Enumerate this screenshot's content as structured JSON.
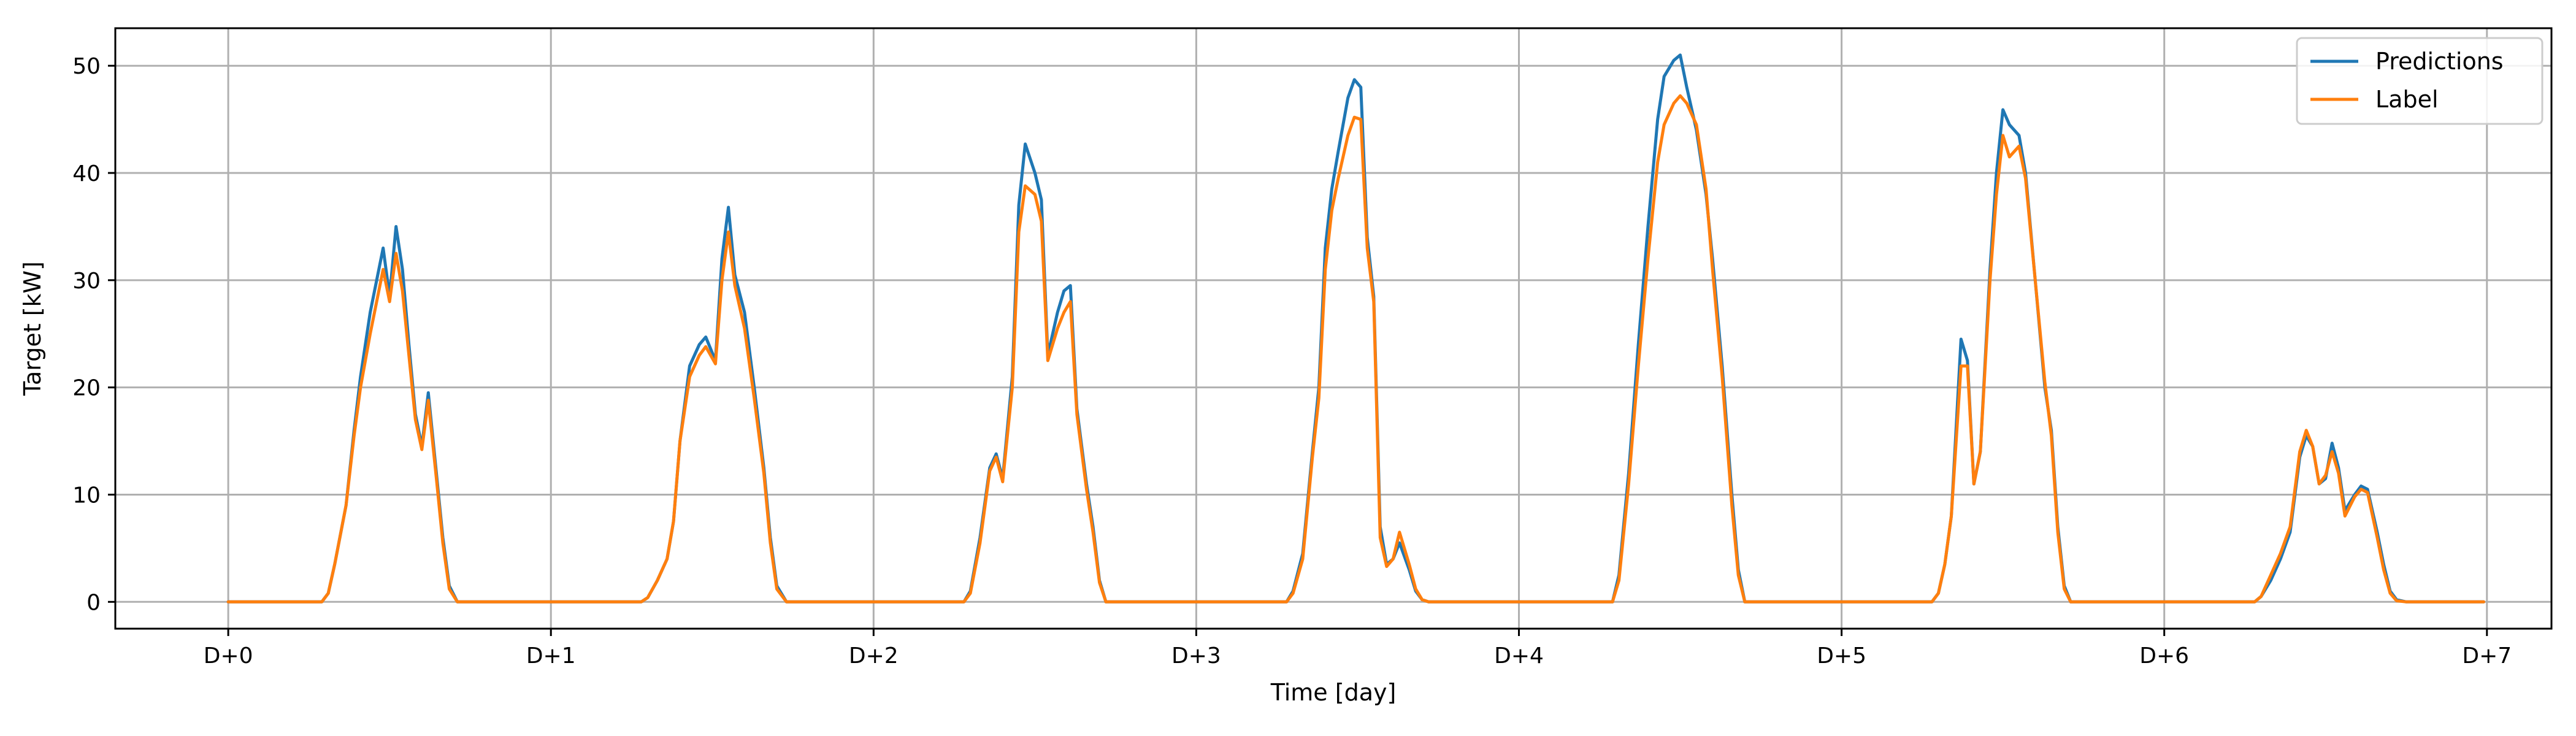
{
  "chart_data": {
    "type": "line",
    "title": "",
    "xlabel": "Time [day]",
    "ylabel": "Target [kW]",
    "xlim": [
      -0.35,
      7.2
    ],
    "ylim": [
      -2.5,
      53.5
    ],
    "x_ticks": [
      {
        "value": 0,
        "label": "D+0"
      },
      {
        "value": 1,
        "label": "D+1"
      },
      {
        "value": 2,
        "label": "D+2"
      },
      {
        "value": 3,
        "label": "D+3"
      },
      {
        "value": 4,
        "label": "D+4"
      },
      {
        "value": 5,
        "label": "D+5"
      },
      {
        "value": 6,
        "label": "D+6"
      },
      {
        "value": 7,
        "label": "D+7"
      }
    ],
    "y_ticks": [
      0,
      10,
      20,
      30,
      40,
      50
    ],
    "grid": true,
    "legend": {
      "placement": "upper right"
    },
    "series": [
      {
        "name": "Predictions",
        "color": "#1f77b4",
        "points": [
          [
            0,
            0
          ],
          [
            0.29,
            0
          ],
          [
            0.31,
            0.8
          ],
          [
            0.33,
            3.5
          ],
          [
            0.365,
            9
          ],
          [
            0.39,
            16
          ],
          [
            0.41,
            21
          ],
          [
            0.44,
            27
          ],
          [
            0.48,
            33
          ],
          [
            0.5,
            28.5
          ],
          [
            0.52,
            35
          ],
          [
            0.54,
            31
          ],
          [
            0.56,
            24
          ],
          [
            0.58,
            17.5
          ],
          [
            0.6,
            14.5
          ],
          [
            0.62,
            19.5
          ],
          [
            0.645,
            12
          ],
          [
            0.665,
            6
          ],
          [
            0.685,
            1.5
          ],
          [
            0.71,
            0
          ],
          [
            1.28,
            0
          ],
          [
            1.3,
            0.4
          ],
          [
            1.33,
            2
          ],
          [
            1.36,
            4
          ],
          [
            1.38,
            7.5
          ],
          [
            1.4,
            15
          ],
          [
            1.43,
            22
          ],
          [
            1.46,
            24
          ],
          [
            1.48,
            24.7
          ],
          [
            1.51,
            22.5
          ],
          [
            1.53,
            32
          ],
          [
            1.55,
            36.8
          ],
          [
            1.57,
            30.5
          ],
          [
            1.6,
            27
          ],
          [
            1.63,
            20
          ],
          [
            1.66,
            12.5
          ],
          [
            1.68,
            6
          ],
          [
            1.7,
            1.5
          ],
          [
            1.73,
            0
          ],
          [
            2.28,
            0
          ],
          [
            2.3,
            1
          ],
          [
            2.33,
            6
          ],
          [
            2.36,
            12.5
          ],
          [
            2.38,
            13.8
          ],
          [
            2.4,
            11.5
          ],
          [
            2.43,
            21
          ],
          [
            2.45,
            37
          ],
          [
            2.47,
            42.7
          ],
          [
            2.5,
            40
          ],
          [
            2.52,
            37.5
          ],
          [
            2.54,
            23
          ],
          [
            2.57,
            27
          ],
          [
            2.59,
            29
          ],
          [
            2.61,
            29.5
          ],
          [
            2.63,
            18
          ],
          [
            2.66,
            11
          ],
          [
            2.68,
            7
          ],
          [
            2.7,
            2
          ],
          [
            2.72,
            0
          ],
          [
            3.28,
            0
          ],
          [
            3.3,
            1
          ],
          [
            3.33,
            4.5
          ],
          [
            3.36,
            14
          ],
          [
            3.38,
            20
          ],
          [
            3.4,
            33
          ],
          [
            3.42,
            38.5
          ],
          [
            3.44,
            42
          ],
          [
            3.47,
            47
          ],
          [
            3.49,
            48.7
          ],
          [
            3.51,
            48
          ],
          [
            3.53,
            34
          ],
          [
            3.55,
            28.5
          ],
          [
            3.57,
            7
          ],
          [
            3.59,
            3.5
          ],
          [
            3.61,
            4
          ],
          [
            3.63,
            5.5
          ],
          [
            3.66,
            3
          ],
          [
            3.68,
            1
          ],
          [
            3.7,
            0.2
          ],
          [
            3.72,
            0
          ],
          [
            4.29,
            0
          ],
          [
            4.31,
            2.5
          ],
          [
            4.34,
            12
          ],
          [
            4.37,
            24
          ],
          [
            4.4,
            35
          ],
          [
            4.43,
            45
          ],
          [
            4.45,
            49
          ],
          [
            4.48,
            50.5
          ],
          [
            4.5,
            51
          ],
          [
            4.52,
            48
          ],
          [
            4.55,
            44
          ],
          [
            4.58,
            38
          ],
          [
            4.6,
            32
          ],
          [
            4.63,
            22
          ],
          [
            4.66,
            10
          ],
          [
            4.68,
            3
          ],
          [
            4.7,
            0
          ],
          [
            5.28,
            0
          ],
          [
            5.3,
            0.8
          ],
          [
            5.32,
            3.5
          ],
          [
            5.34,
            8
          ],
          [
            5.37,
            24.5
          ],
          [
            5.39,
            22.5
          ],
          [
            5.41,
            11
          ],
          [
            5.43,
            14
          ],
          [
            5.46,
            31
          ],
          [
            5.48,
            40
          ],
          [
            5.5,
            45.9
          ],
          [
            5.52,
            44.5
          ],
          [
            5.55,
            43.5
          ],
          [
            5.57,
            40
          ],
          [
            5.6,
            30
          ],
          [
            5.63,
            20
          ],
          [
            5.65,
            16
          ],
          [
            5.67,
            7
          ],
          [
            5.69,
            1.5
          ],
          [
            5.71,
            0
          ],
          [
            6.28,
            0
          ],
          [
            6.3,
            0.5
          ],
          [
            6.33,
            2
          ],
          [
            6.36,
            4
          ],
          [
            6.39,
            6.5
          ],
          [
            6.42,
            13.5
          ],
          [
            6.44,
            15.5
          ],
          [
            6.46,
            14.5
          ],
          [
            6.48,
            11
          ],
          [
            6.5,
            11.5
          ],
          [
            6.52,
            14.8
          ],
          [
            6.54,
            12.5
          ],
          [
            6.56,
            8.5
          ],
          [
            6.59,
            10
          ],
          [
            6.61,
            10.8
          ],
          [
            6.63,
            10.5
          ],
          [
            6.66,
            6.5
          ],
          [
            6.68,
            3.5
          ],
          [
            6.7,
            1
          ],
          [
            6.72,
            0.2
          ],
          [
            6.75,
            0
          ],
          [
            6.99,
            0
          ]
        ]
      },
      {
        "name": "Label",
        "color": "#ff7f0e",
        "points": [
          [
            0,
            0
          ],
          [
            0.29,
            0
          ],
          [
            0.31,
            0.8
          ],
          [
            0.33,
            3.5
          ],
          [
            0.365,
            9
          ],
          [
            0.39,
            15.5
          ],
          [
            0.41,
            20
          ],
          [
            0.44,
            25
          ],
          [
            0.48,
            31
          ],
          [
            0.5,
            28
          ],
          [
            0.52,
            32.5
          ],
          [
            0.54,
            29
          ],
          [
            0.56,
            23
          ],
          [
            0.58,
            17
          ],
          [
            0.6,
            14.2
          ],
          [
            0.62,
            18.8
          ],
          [
            0.645,
            11.5
          ],
          [
            0.665,
            5.5
          ],
          [
            0.685,
            1.2
          ],
          [
            0.71,
            0
          ],
          [
            1.28,
            0
          ],
          [
            1.3,
            0.4
          ],
          [
            1.33,
            2
          ],
          [
            1.36,
            4
          ],
          [
            1.38,
            7.5
          ],
          [
            1.4,
            15
          ],
          [
            1.43,
            21
          ],
          [
            1.46,
            23
          ],
          [
            1.48,
            23.8
          ],
          [
            1.51,
            22.2
          ],
          [
            1.53,
            30
          ],
          [
            1.55,
            34.5
          ],
          [
            1.57,
            29.5
          ],
          [
            1.6,
            25.5
          ],
          [
            1.63,
            19
          ],
          [
            1.66,
            12
          ],
          [
            1.68,
            5.5
          ],
          [
            1.7,
            1.2
          ],
          [
            1.73,
            0
          ],
          [
            2.28,
            0
          ],
          [
            2.3,
            0.8
          ],
          [
            2.33,
            5.5
          ],
          [
            2.36,
            12.2
          ],
          [
            2.38,
            13.5
          ],
          [
            2.4,
            11.2
          ],
          [
            2.43,
            20
          ],
          [
            2.45,
            34.5
          ],
          [
            2.47,
            38.8
          ],
          [
            2.5,
            38
          ],
          [
            2.52,
            35.5
          ],
          [
            2.54,
            22.5
          ],
          [
            2.57,
            25.5
          ],
          [
            2.59,
            27
          ],
          [
            2.61,
            28
          ],
          [
            2.63,
            17.5
          ],
          [
            2.66,
            10.5
          ],
          [
            2.68,
            6.5
          ],
          [
            2.7,
            1.8
          ],
          [
            2.72,
            0
          ],
          [
            3.28,
            0
          ],
          [
            3.3,
            0.8
          ],
          [
            3.33,
            4
          ],
          [
            3.36,
            13.5
          ],
          [
            3.38,
            19
          ],
          [
            3.4,
            31
          ],
          [
            3.42,
            36.5
          ],
          [
            3.44,
            39.5
          ],
          [
            3.47,
            43.5
          ],
          [
            3.49,
            45.2
          ],
          [
            3.51,
            45
          ],
          [
            3.53,
            33
          ],
          [
            3.55,
            28
          ],
          [
            3.57,
            6
          ],
          [
            3.59,
            3.3
          ],
          [
            3.61,
            4
          ],
          [
            3.63,
            6.5
          ],
          [
            3.66,
            3.5
          ],
          [
            3.68,
            1.2
          ],
          [
            3.7,
            0.2
          ],
          [
            3.72,
            0
          ],
          [
            4.29,
            0
          ],
          [
            4.31,
            2
          ],
          [
            4.34,
            11
          ],
          [
            4.37,
            22
          ],
          [
            4.4,
            32
          ],
          [
            4.43,
            41
          ],
          [
            4.45,
            44.5
          ],
          [
            4.48,
            46.5
          ],
          [
            4.5,
            47.2
          ],
          [
            4.52,
            46.5
          ],
          [
            4.55,
            44.5
          ],
          [
            4.58,
            38.5
          ],
          [
            4.6,
            31
          ],
          [
            4.63,
            21
          ],
          [
            4.66,
            9
          ],
          [
            4.68,
            2.5
          ],
          [
            4.7,
            0
          ],
          [
            5.28,
            0
          ],
          [
            5.3,
            0.8
          ],
          [
            5.32,
            3.5
          ],
          [
            5.34,
            8
          ],
          [
            5.37,
            22
          ],
          [
            5.39,
            22
          ],
          [
            5.41,
            11
          ],
          [
            5.43,
            14
          ],
          [
            5.46,
            30
          ],
          [
            5.48,
            38
          ],
          [
            5.5,
            43.5
          ],
          [
            5.52,
            41.5
          ],
          [
            5.55,
            42.5
          ],
          [
            5.57,
            39.5
          ],
          [
            5.6,
            30
          ],
          [
            5.63,
            20.5
          ],
          [
            5.65,
            15.5
          ],
          [
            5.67,
            6.5
          ],
          [
            5.69,
            1.2
          ],
          [
            5.71,
            0
          ],
          [
            6.28,
            0
          ],
          [
            6.3,
            0.5
          ],
          [
            6.33,
            2.5
          ],
          [
            6.36,
            4.5
          ],
          [
            6.39,
            7
          ],
          [
            6.42,
            14
          ],
          [
            6.44,
            16
          ],
          [
            6.46,
            14.5
          ],
          [
            6.48,
            11
          ],
          [
            6.5,
            11.8
          ],
          [
            6.52,
            14
          ],
          [
            6.54,
            12
          ],
          [
            6.56,
            8
          ],
          [
            6.59,
            9.8
          ],
          [
            6.61,
            10.5
          ],
          [
            6.63,
            10.2
          ],
          [
            6.66,
            6
          ],
          [
            6.68,
            3
          ],
          [
            6.7,
            0.8
          ],
          [
            6.72,
            0.1
          ],
          [
            6.75,
            0
          ],
          [
            6.99,
            0
          ]
        ]
      }
    ]
  }
}
